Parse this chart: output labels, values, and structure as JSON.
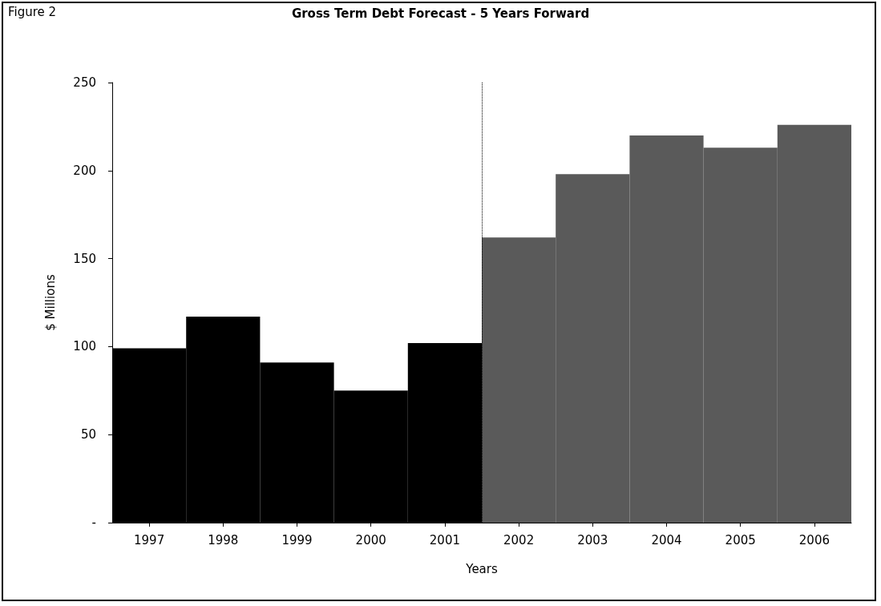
{
  "chart_data": {
    "type": "bar",
    "title": "Gross Term Debt Forecast - 5 Years Forward",
    "xlabel": "Years",
    "ylabel": "$ Millions",
    "annotations": [
      "Figure 2"
    ],
    "series": [
      {
        "color": "#000000",
        "x": [
          1997,
          1998,
          1999,
          2000,
          2001
        ],
        "values": [
          99,
          117,
          91,
          75,
          102
        ]
      },
      {
        "color": "#5a5a5a",
        "x": [
          2002,
          2003,
          2004,
          2005,
          2006
        ],
        "values": [
          162,
          198,
          220,
          213,
          226
        ]
      }
    ],
    "xlim": [
      1996.5,
      2006.5
    ],
    "xticks": [
      1997,
      1998,
      1999,
      2000,
      2001,
      2002,
      2003,
      2004,
      2005,
      2006
    ],
    "ylim": [
      0,
      250
    ],
    "yticks": [
      {
        "value": 0,
        "label": "-"
      },
      50,
      100,
      150,
      200,
      250
    ],
    "ref_lines": [
      {
        "axis": "x",
        "value": 2001.5,
        "color": "#000000",
        "line_style": "dotted"
      }
    ]
  }
}
